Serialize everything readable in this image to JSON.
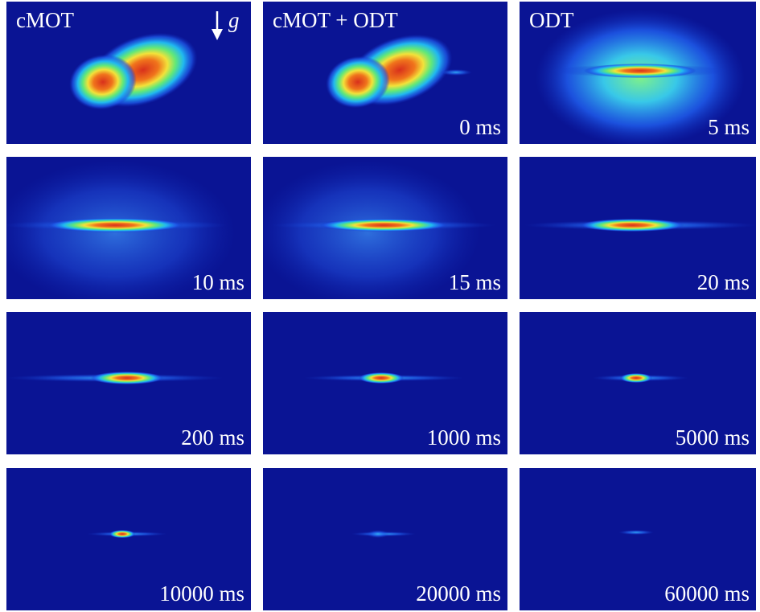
{
  "panels": [
    {
      "title": "cMOT",
      "gravity_label": "g"
    },
    {
      "title": "cMOT + ODT",
      "time": "0 ms"
    },
    {
      "title": "ODT",
      "time": "5 ms"
    },
    {
      "time": "10 ms"
    },
    {
      "time": "15 ms"
    },
    {
      "time": "20 ms"
    },
    {
      "time": "200 ms"
    },
    {
      "time": "1000 ms"
    },
    {
      "time": "5000 ms"
    },
    {
      "time": "10000 ms"
    },
    {
      "time": "20000 ms"
    },
    {
      "time": "60000 ms"
    }
  ]
}
